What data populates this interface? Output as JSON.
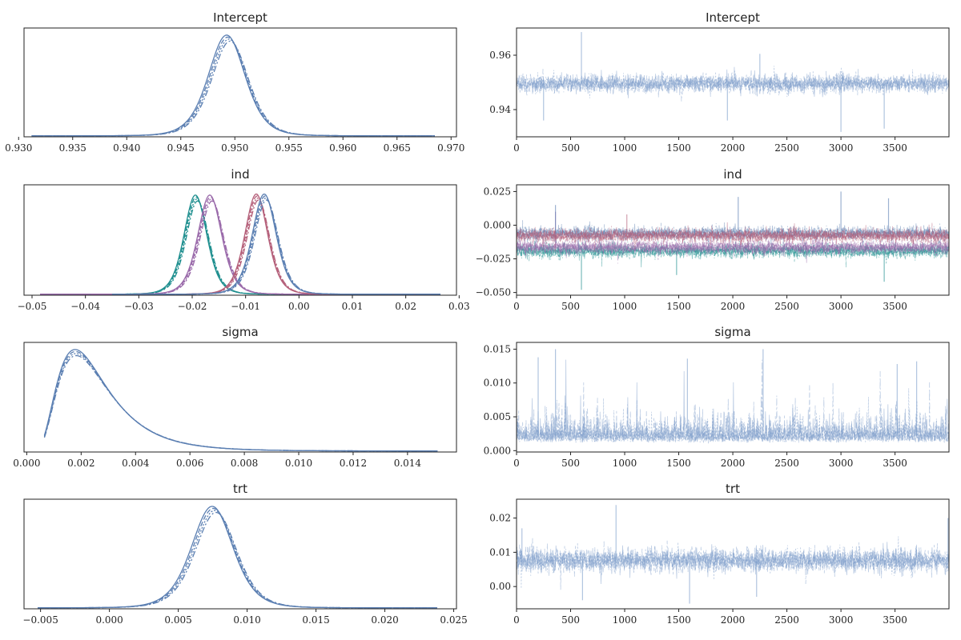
{
  "chart_data": [
    {
      "type": "line",
      "panel": "density",
      "title": "Intercept",
      "xlim": [
        0.9305,
        0.9705
      ],
      "ylim": [
        0,
        1.08
      ],
      "yticks": false,
      "xticks": [
        0.93,
        0.935,
        0.94,
        0.945,
        0.95,
        0.955,
        0.96,
        0.965,
        0.97
      ],
      "xtick_labels": [
        "0.930",
        "0.935",
        "0.940",
        "0.945",
        "0.950",
        "0.955",
        "0.960",
        "0.965",
        "0.970"
      ],
      "series": [
        {
          "color": "#5b7fb2",
          "dash": "solid",
          "mode": "density",
          "mu": 0.9494,
          "sigma": 0.00175,
          "peak": 1.0,
          "xmin": 0.9312,
          "xmax": 0.9685
        }
      ]
    },
    {
      "type": "line",
      "panel": "trace",
      "title": "Intercept",
      "xlim": [
        0,
        3999
      ],
      "ylim": [
        0.93,
        0.97
      ],
      "xticks": [
        0,
        500,
        1000,
        1500,
        2000,
        2500,
        3000,
        3500
      ],
      "xtick_labels": [
        "0",
        "500",
        "1000",
        "1500",
        "2000",
        "2500",
        "3000",
        "3500"
      ],
      "yticks": [
        0.94,
        0.96
      ],
      "ytick_labels": [
        "0.94",
        "0.96"
      ],
      "series": [
        {
          "color": "#7b9cc9",
          "mode": "trace",
          "center": 0.9495,
          "spread": 0.0016,
          "skew": 0,
          "spikes": [
            [
              600,
              0.9685
            ],
            [
              3000,
              0.9318
            ],
            [
              1950,
              0.936
            ],
            [
              3400,
              0.933
            ],
            [
              2250,
              0.9605
            ],
            [
              250,
              0.936
            ]
          ]
        }
      ]
    },
    {
      "type": "line",
      "panel": "density",
      "title": "ind",
      "xlim": [
        -0.0515,
        0.0295
      ],
      "ylim": [
        0,
        1.08
      ],
      "yticks": false,
      "xticks": [
        -0.05,
        -0.04,
        -0.03,
        -0.02,
        -0.01,
        0.0,
        0.01,
        0.02,
        0.03
      ],
      "xtick_labels": [
        "−0.05",
        "−0.04",
        "−0.03",
        "−0.02",
        "−0.01",
        "0.00",
        "0.01",
        "0.02",
        "0.03"
      ],
      "series": [
        {
          "color": "#1f8f8f",
          "mode": "density",
          "mu": -0.0192,
          "sigma": 0.0022,
          "peak": 0.97,
          "xmin": -0.0485,
          "xmax": 0.0
        },
        {
          "color": "#9a6aaa",
          "mode": "density",
          "mu": -0.0165,
          "sigma": 0.0023,
          "peak": 0.97,
          "xmin": -0.0485,
          "xmax": 0.01
        },
        {
          "color": "#b5607a",
          "mode": "density",
          "mu": -0.0078,
          "sigma": 0.0022,
          "peak": 0.98,
          "xmin": -0.035,
          "xmax": 0.0265
        },
        {
          "color": "#5b7fb2",
          "mode": "density",
          "mu": -0.0063,
          "sigma": 0.0023,
          "peak": 0.98,
          "xmin": -0.035,
          "xmax": 0.0265
        }
      ]
    },
    {
      "type": "line",
      "panel": "trace",
      "title": "ind",
      "xlim": [
        0,
        3999
      ],
      "ylim": [
        -0.052,
        0.03
      ],
      "xticks": [
        0,
        500,
        1000,
        1500,
        2000,
        2500,
        3000,
        3500
      ],
      "xtick_labels": [
        "0",
        "500",
        "1000",
        "1500",
        "2000",
        "2500",
        "3000",
        "3500"
      ],
      "yticks": [
        -0.05,
        -0.025,
        0.0,
        0.025
      ],
      "ytick_labels": [
        "−0.050",
        "−0.025",
        "0.000",
        "0.025"
      ],
      "series": [
        {
          "color": "#1f8f8f",
          "mode": "trace",
          "center": -0.0192,
          "spread": 0.0024,
          "skew": 0,
          "spikes": [
            [
              600,
              -0.048
            ],
            [
              1480,
              -0.037
            ],
            [
              3400,
              -0.042
            ]
          ]
        },
        {
          "color": "#9a6aaa",
          "mode": "trace",
          "center": -0.0165,
          "spread": 0.0024,
          "skew": 0,
          "spikes": [
            [
              360,
              0.01
            ]
          ]
        },
        {
          "color": "#5b7fb2",
          "mode": "trace",
          "center": -0.0063,
          "spread": 0.0024,
          "skew": 0,
          "spikes": [
            [
              3000,
              0.025
            ],
            [
              2050,
              0.021
            ],
            [
              3440,
              0.02
            ],
            [
              360,
              0.015
            ]
          ]
        },
        {
          "color": "#b5607a",
          "mode": "trace",
          "center": -0.0078,
          "spread": 0.0024,
          "skew": 0,
          "spikes": [
            [
              1020,
              0.008
            ]
          ]
        }
      ]
    },
    {
      "type": "line",
      "panel": "density",
      "title": "sigma",
      "xlim": [
        -0.0001,
        0.0158
      ],
      "ylim": [
        0,
        1.08
      ],
      "yticks": false,
      "xticks": [
        0.0,
        0.002,
        0.004,
        0.006,
        0.008,
        0.01,
        0.012,
        0.014
      ],
      "xtick_labels": [
        "0.000",
        "0.002",
        "0.004",
        "0.006",
        "0.008",
        "0.010",
        "0.012",
        "0.014"
      ],
      "series": [
        {
          "color": "#5b7fb2",
          "mode": "lognormal",
          "mu": -6.05,
          "sigma": 0.52,
          "peak": 1.0,
          "xmin": 0.00065,
          "xmax": 0.0151
        }
      ]
    },
    {
      "type": "line",
      "panel": "trace",
      "title": "sigma",
      "xlim": [
        0,
        3999
      ],
      "ylim": [
        -0.0002,
        0.016
      ],
      "xticks": [
        0,
        500,
        1000,
        1500,
        2000,
        2500,
        3000,
        3500
      ],
      "xtick_labels": [
        "0",
        "500",
        "1000",
        "1500",
        "2000",
        "2500",
        "3000",
        "3500"
      ],
      "yticks": [
        0.0,
        0.005,
        0.01,
        0.015
      ],
      "ytick_labels": [
        "0.000",
        "0.005",
        "0.010",
        "0.015"
      ],
      "series": [
        {
          "color": "#7b9cc9",
          "mode": "trace",
          "center": 0.0022,
          "spread": 0.0009,
          "skew": 1,
          "floor": 0.0003,
          "spikes": [
            [
              360,
              0.015
            ],
            [
              2280,
              0.015
            ],
            [
              200,
              0.0138
            ],
            [
              1580,
              0.0136
            ],
            [
              3700,
              0.0132
            ],
            [
              3520,
              0.0128
            ]
          ]
        }
      ]
    },
    {
      "type": "line",
      "panel": "density",
      "title": "trt",
      "xlim": [
        -0.0062,
        0.0252
      ],
      "ylim": [
        0,
        1.08
      ],
      "yticks": false,
      "xticks": [
        -0.005,
        0.0,
        0.005,
        0.01,
        0.015,
        0.02,
        0.025
      ],
      "xtick_labels": [
        "−0.005",
        "0.000",
        "0.005",
        "0.010",
        "0.015",
        "0.020",
        "0.025"
      ],
      "series": [
        {
          "color": "#5b7fb2",
          "mode": "density",
          "mu": 0.0076,
          "sigma": 0.00155,
          "peak": 1.0,
          "xmin": -0.0052,
          "xmax": 0.0238
        }
      ]
    },
    {
      "type": "line",
      "panel": "trace",
      "title": "trt",
      "xlim": [
        0,
        3999
      ],
      "ylim": [
        -0.0065,
        0.0255
      ],
      "xticks": [
        0,
        500,
        1000,
        1500,
        2000,
        2500,
        3000,
        3500
      ],
      "xtick_labels": [
        "0",
        "500",
        "1000",
        "1500",
        "2000",
        "2500",
        "3000",
        "3500"
      ],
      "yticks": [
        0.0,
        0.01,
        0.02
      ],
      "ytick_labels": [
        "0.00",
        "0.01",
        "0.02"
      ],
      "series": [
        {
          "color": "#7b9cc9",
          "mode": "trace",
          "center": 0.0076,
          "spread": 0.0017,
          "skew": 0,
          "spikes": [
            [
              920,
              0.0238
            ],
            [
              1600,
              -0.005
            ],
            [
              3990,
              0.02
            ],
            [
              50,
              0.017
            ],
            [
              610,
              -0.004
            ],
            [
              2220,
              -0.003
            ]
          ]
        }
      ]
    }
  ]
}
